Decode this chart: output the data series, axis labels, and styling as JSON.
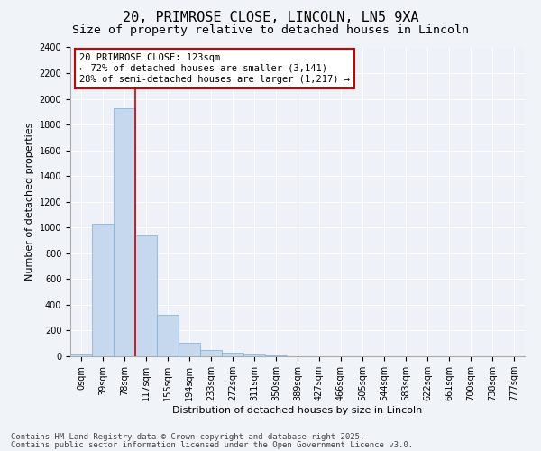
{
  "title1": "20, PRIMROSE CLOSE, LINCOLN, LN5 9XA",
  "title2": "Size of property relative to detached houses in Lincoln",
  "xlabel": "Distribution of detached houses by size in Lincoln",
  "ylabel": "Number of detached properties",
  "bar_labels": [
    "0sqm",
    "39sqm",
    "78sqm",
    "117sqm",
    "155sqm",
    "194sqm",
    "233sqm",
    "272sqm",
    "311sqm",
    "350sqm",
    "389sqm",
    "427sqm",
    "466sqm",
    "505sqm",
    "544sqm",
    "583sqm",
    "622sqm",
    "661sqm",
    "700sqm",
    "738sqm",
    "777sqm"
  ],
  "bar_values": [
    15,
    1030,
    1930,
    940,
    320,
    105,
    50,
    30,
    15,
    5,
    2,
    0,
    0,
    0,
    0,
    0,
    0,
    0,
    0,
    0,
    0
  ],
  "bar_color": "#c5d8ed",
  "bar_edgecolor": "#7aadd4",
  "vline_x": 3.0,
  "vline_color": "#cc0000",
  "ylim": [
    0,
    2400
  ],
  "yticks": [
    0,
    200,
    400,
    600,
    800,
    1000,
    1200,
    1400,
    1600,
    1800,
    2000,
    2200,
    2400
  ],
  "annotation_text": "20 PRIMROSE CLOSE: 123sqm\n← 72% of detached houses are smaller (3,141)\n28% of semi-detached houses are larger (1,217) →",
  "annotation_boxcolor": "#ffffff",
  "annotation_boxedge": "#cc0000",
  "bg_color": "#f0f4f8",
  "plot_bg": "#eef2f8",
  "grid_color": "#ffffff",
  "footer1": "Contains HM Land Registry data © Crown copyright and database right 2025.",
  "footer2": "Contains public sector information licensed under the Open Government Licence v3.0.",
  "title1_fontsize": 11,
  "title2_fontsize": 9.5,
  "xlabel_fontsize": 8,
  "ylabel_fontsize": 8,
  "tick_fontsize": 7,
  "annot_fontsize": 7.5,
  "footer_fontsize": 6.5
}
